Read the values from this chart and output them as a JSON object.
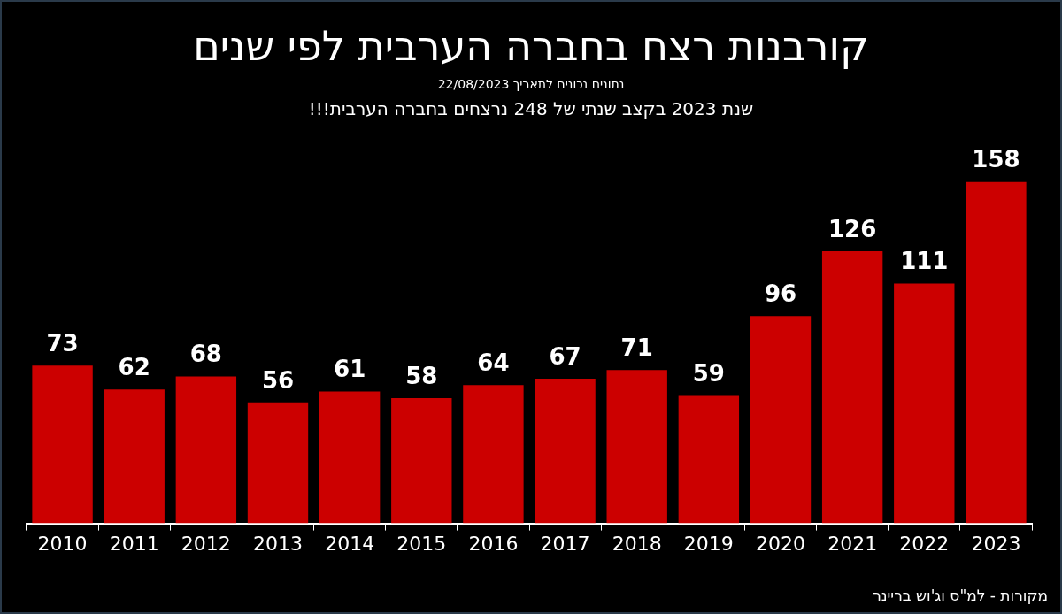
{
  "chart_data": {
    "type": "bar",
    "title": "קורבנות רצח בחברה הערבית לפי שנים",
    "subtitle": "נתונים נכונים לתאריך 22/08/2023",
    "annotations": [
      "שנת 2023 בקצב שנתי של 248 נרצחים בחברה הערבית!!!",
      "מקורות - למ\"ס וג'וש בריינר"
    ],
    "categories": [
      "2010",
      "2011",
      "2012",
      "2013",
      "2014",
      "2015",
      "2016",
      "2017",
      "2018",
      "2019",
      "2020",
      "2021",
      "2022",
      "2023"
    ],
    "values": [
      73,
      62,
      68,
      56,
      61,
      58,
      64,
      67,
      71,
      59,
      96,
      126,
      111,
      158
    ],
    "color": "#cc0000",
    "data_labels": true
  }
}
